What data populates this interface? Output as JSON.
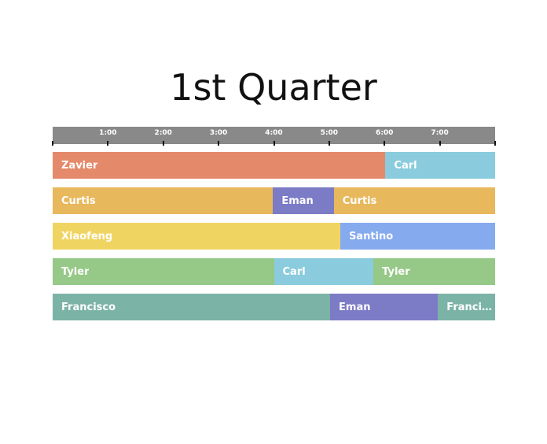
{
  "chart_data": {
    "type": "timeline",
    "title": "1st Quarter",
    "x_range": [
      "0:00",
      "8:00"
    ],
    "ticks": [
      "1:00",
      "2:00",
      "3:00",
      "4:00",
      "5:00",
      "6:00",
      "7:00"
    ],
    "series": [
      {
        "segments": [
          {
            "label": "Zavier",
            "start": "0:00",
            "end": "6:01",
            "color": "#e48a6b"
          },
          {
            "label": "Carl",
            "start": "6:01",
            "end": "8:00",
            "color": "#8accdd"
          }
        ]
      },
      {
        "segments": [
          {
            "label": "Curtis",
            "start": "0:00",
            "end": "3:59",
            "color": "#e8b85c"
          },
          {
            "label": "Eman",
            "start": "3:59",
            "end": "5:05",
            "color": "#7c7bc6"
          },
          {
            "label": "Curtis",
            "start": "5:05",
            "end": "8:00",
            "color": "#e8b85c"
          }
        ]
      },
      {
        "segments": [
          {
            "label": "Xiaofeng",
            "start": "0:00",
            "end": "5:12",
            "color": "#f0d462"
          },
          {
            "label": "Santino",
            "start": "5:12",
            "end": "8:00",
            "color": "#86aaee"
          }
        ]
      },
      {
        "segments": [
          {
            "label": "Tyler",
            "start": "0:00",
            "end": "4:00",
            "color": "#96c887"
          },
          {
            "label": "Carl",
            "start": "4:00",
            "end": "5:48",
            "color": "#8accdd"
          },
          {
            "label": "Tyler",
            "start": "5:48",
            "end": "8:00",
            "color": "#96c887"
          }
        ]
      },
      {
        "segments": [
          {
            "label": "Francisco",
            "start": "0:00",
            "end": "5:01",
            "color": "#7cb3a7"
          },
          {
            "label": "Eman",
            "start": "5:01",
            "end": "6:58",
            "color": "#7c7bc6"
          },
          {
            "label": "Francisco",
            "start": "6:58",
            "end": "8:00",
            "color": "#7cb3a7"
          }
        ]
      }
    ]
  }
}
